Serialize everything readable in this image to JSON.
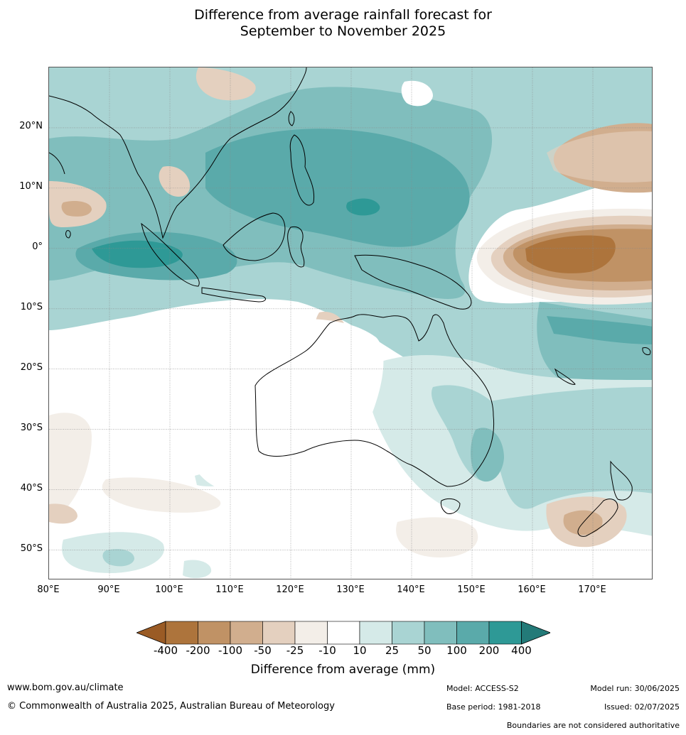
{
  "title": {
    "line1": "Difference from average rainfall forecast for",
    "line2": "September to November 2025"
  },
  "axes": {
    "lat_labels": [
      "20°N",
      "10°N",
      "0°",
      "10°S",
      "20°S",
      "30°S",
      "40°S",
      "50°S"
    ],
    "lon_labels": [
      "80°E",
      "90°E",
      "100°E",
      "110°E",
      "120°E",
      "130°E",
      "140°E",
      "150°E",
      "160°E",
      "170°E"
    ],
    "lat_range": [
      -55,
      30
    ],
    "lon_range": [
      80,
      180
    ]
  },
  "legend": {
    "title": "Difference from average (mm)",
    "ticks": [
      "-400",
      "-200",
      "-100",
      "-50",
      "-25",
      "-10",
      "10",
      "25",
      "50",
      "100",
      "200",
      "400"
    ],
    "colors": [
      "#9a5b25",
      "#ad743c",
      "#c09265",
      "#d1ae8e",
      "#e4d0bf",
      "#f3eee8",
      "#ffffff",
      "#d5eae8",
      "#a9d4d3",
      "#80bebd",
      "#5aaaaa",
      "#2e9996",
      "#237a78"
    ]
  },
  "footer": {
    "website": "www.bom.gov.au/climate",
    "copyright": "© Commonwealth of Australia 2025, Australian Bureau of Meteorology",
    "model": "Model: ACCESS-S2",
    "model_run": "Model run: 30/06/2025",
    "base_period": "Base period: 1981-2018",
    "issued": "Issued: 02/07/2025",
    "disclaimer": "Boundaries are not considered authoritative"
  }
}
